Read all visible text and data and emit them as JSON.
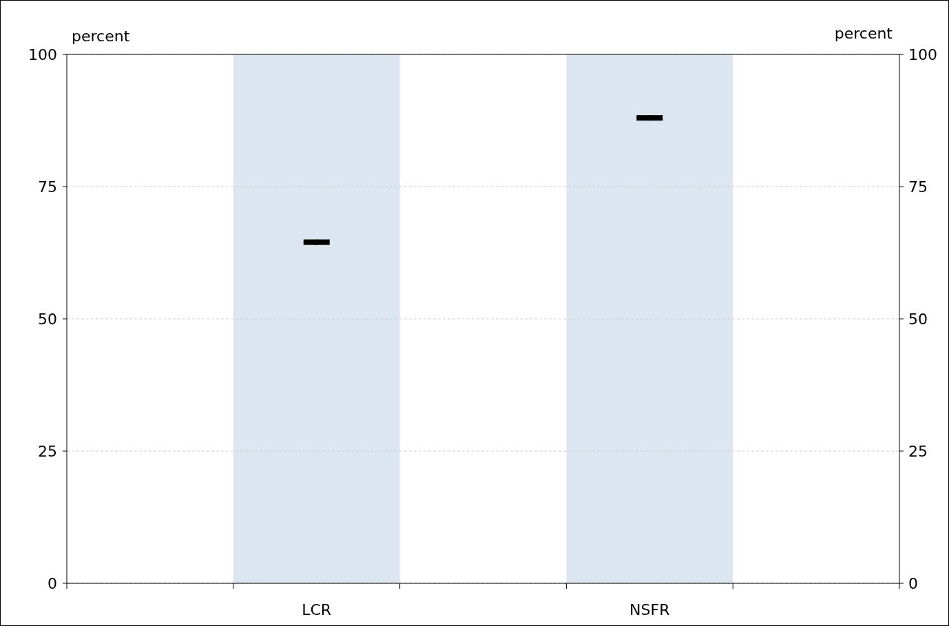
{
  "chart_data": {
    "type": "bar",
    "categories": [
      null,
      "LCR",
      null,
      "NSFR",
      null
    ],
    "series": [
      {
        "color": "#dce6f1",
        "values": [
          null,
          100,
          null,
          100,
          null
        ]
      },
      {
        "type": "scatter",
        "color": "#000000",
        "values": [
          null,
          64.5,
          null,
          88,
          null
        ]
      }
    ],
    "ylabel": "percent",
    "y2label": "percent",
    "ylim": [
      0,
      100
    ],
    "yticks": [
      0,
      25,
      50,
      75,
      100
    ],
    "y2lim": [
      0,
      100
    ],
    "y2ticks": [
      0,
      25,
      50,
      75,
      100
    ],
    "grid": "y"
  }
}
